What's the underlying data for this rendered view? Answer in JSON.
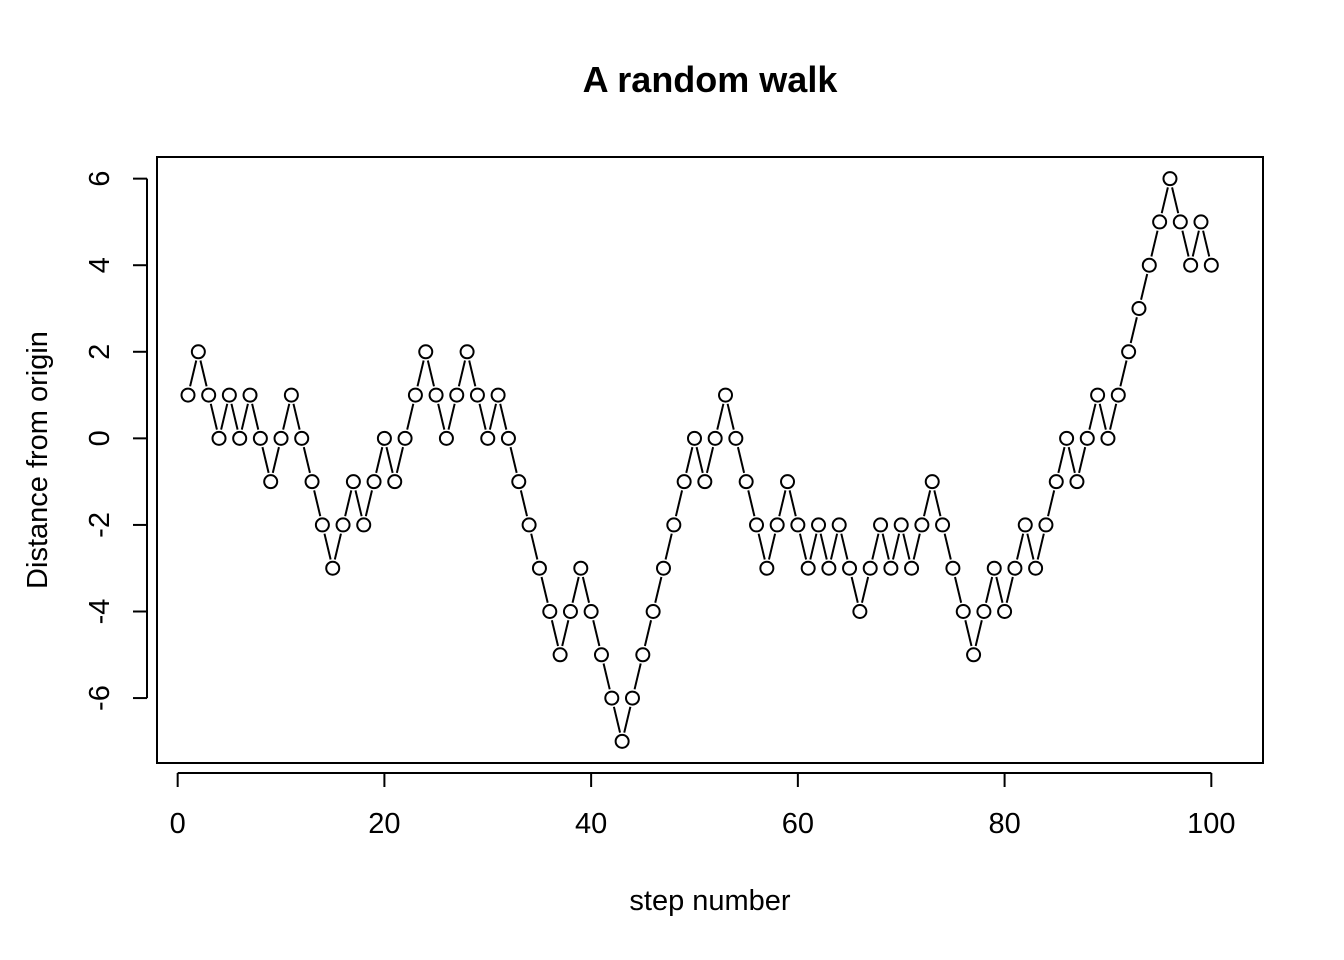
{
  "chart_data": {
    "type": "line",
    "title": "A random walk",
    "xlabel": "step number",
    "ylabel": "Distance from origin",
    "xlim": [
      -2,
      105
    ],
    "ylim": [
      -7.5,
      6.5
    ],
    "x_ticks": [
      0,
      20,
      40,
      60,
      80,
      100
    ],
    "y_ticks": [
      -6,
      -4,
      -2,
      0,
      2,
      4,
      6
    ],
    "markers": "open-circle",
    "line_color": "#000000",
    "grid": false,
    "legend": "none",
    "series": [
      {
        "x": [
          1,
          2,
          3,
          4,
          5,
          6,
          7,
          8,
          9,
          10,
          11,
          12,
          13,
          14,
          15,
          16,
          17,
          18,
          19,
          20,
          21,
          22,
          23,
          24,
          25,
          26,
          27,
          28,
          29,
          30,
          31,
          32,
          33,
          34,
          35,
          36,
          37,
          38,
          39,
          40,
          41,
          42,
          43,
          44,
          45,
          46,
          47,
          48,
          49,
          50,
          51,
          52,
          53,
          54,
          55,
          56,
          57,
          58,
          59,
          60,
          61,
          62,
          63,
          64,
          65,
          66,
          67,
          68,
          69,
          70,
          71,
          72,
          73,
          74,
          75,
          76,
          77,
          78,
          79,
          80,
          81,
          82,
          83,
          84,
          85,
          86,
          87,
          88,
          89,
          90,
          91,
          92,
          93,
          94,
          95,
          96,
          97,
          98,
          99,
          100
        ],
        "values": [
          1,
          2,
          1,
          0,
          1,
          0,
          1,
          0,
          -1,
          0,
          1,
          0,
          -1,
          -2,
          -3,
          -2,
          -1,
          -2,
          -1,
          0,
          -1,
          0,
          1,
          2,
          1,
          0,
          1,
          2,
          1,
          0,
          1,
          0,
          -1,
          -2,
          -3,
          -4,
          -5,
          -4,
          -3,
          -4,
          -5,
          -6,
          -7,
          -6,
          -5,
          -4,
          -3,
          -2,
          -1,
          0,
          -1,
          0,
          1,
          0,
          -1,
          -2,
          -3,
          -2,
          -1,
          -2,
          -3,
          -2,
          -3,
          -2,
          -3,
          -4,
          -3,
          -2,
          -3,
          -2,
          -3,
          -2,
          -1,
          -2,
          -3,
          -4,
          -5,
          -4,
          -3,
          -4,
          -3,
          -2,
          -3,
          -2,
          -1,
          0,
          -1,
          0,
          1,
          0,
          1,
          2,
          3,
          4,
          5,
          6,
          5,
          4,
          5,
          4
        ]
      }
    ]
  }
}
